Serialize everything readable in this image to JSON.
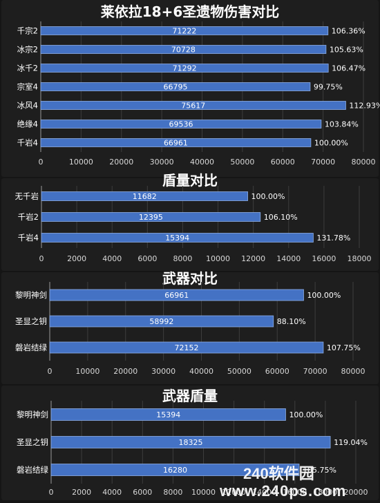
{
  "chart_data": [
    {
      "type": "bar",
      "orientation": "horizontal",
      "title": "莱依拉18+6圣遗物伤害对比",
      "categories": [
        "千宗2",
        "冰宗2",
        "冰千2",
        "宗室4",
        "冰风4",
        "绝缘4",
        "千岩4"
      ],
      "values": [
        71222,
        70728,
        71292,
        66795,
        75617,
        69536,
        66961
      ],
      "percent_labels": [
        "106.36%",
        "105.63%",
        "106.47%",
        "99.75%",
        "112.93%",
        "103.84%",
        "100.00%"
      ],
      "xlim": [
        0,
        80000
      ],
      "xticks": [
        "0",
        "10000",
        "20000",
        "30000",
        "40000",
        "50000",
        "60000",
        "70000",
        "80000"
      ],
      "bar_color": "#4472C4",
      "grid": true
    },
    {
      "type": "bar",
      "orientation": "horizontal",
      "title": "盾量对比",
      "categories": [
        "无千岩",
        "千岩2",
        "千岩4"
      ],
      "values": [
        11682,
        12395,
        15394
      ],
      "percent_labels": [
        "100.00%",
        "106.10%",
        "131.78%"
      ],
      "xlim": [
        0,
        18000
      ],
      "xticks": [
        "0",
        "2000",
        "4000",
        "6000",
        "8000",
        "10000",
        "12000",
        "14000",
        "16000",
        "18000"
      ],
      "bar_color": "#4472C4",
      "grid": true
    },
    {
      "type": "bar",
      "orientation": "horizontal",
      "title": "武器对比",
      "categories": [
        "黎明神剑",
        "圣显之钥",
        "磐岩结绿"
      ],
      "values": [
        66961,
        58992,
        72152
      ],
      "percent_labels": [
        "100.00%",
        "88.10%",
        "107.75%"
      ],
      "xlim": [
        0,
        80000
      ],
      "xticks": [
        "0",
        "10000",
        "20000",
        "30000",
        "40000",
        "50000",
        "60000",
        "70000",
        "80000"
      ],
      "bar_color": "#4472C4",
      "grid": true
    },
    {
      "type": "bar",
      "orientation": "horizontal",
      "title": "武器盾量",
      "categories": [
        "黎明神剑",
        "圣显之钥",
        "磐岩结绿"
      ],
      "values": [
        15394,
        18325,
        16280
      ],
      "percent_labels": [
        "100.00%",
        "119.04%",
        "105.75%"
      ],
      "xlim": [
        0,
        20000
      ],
      "xticks": [
        "0",
        "2000",
        "4000",
        "6000",
        "8000",
        "10000",
        "12000",
        "14000",
        "16000",
        "18000",
        "20000"
      ],
      "bar_color": "#4472C4",
      "grid": true
    }
  ],
  "watermark": {
    "brand": "240软件园",
    "url": "www.240ps.com"
  }
}
